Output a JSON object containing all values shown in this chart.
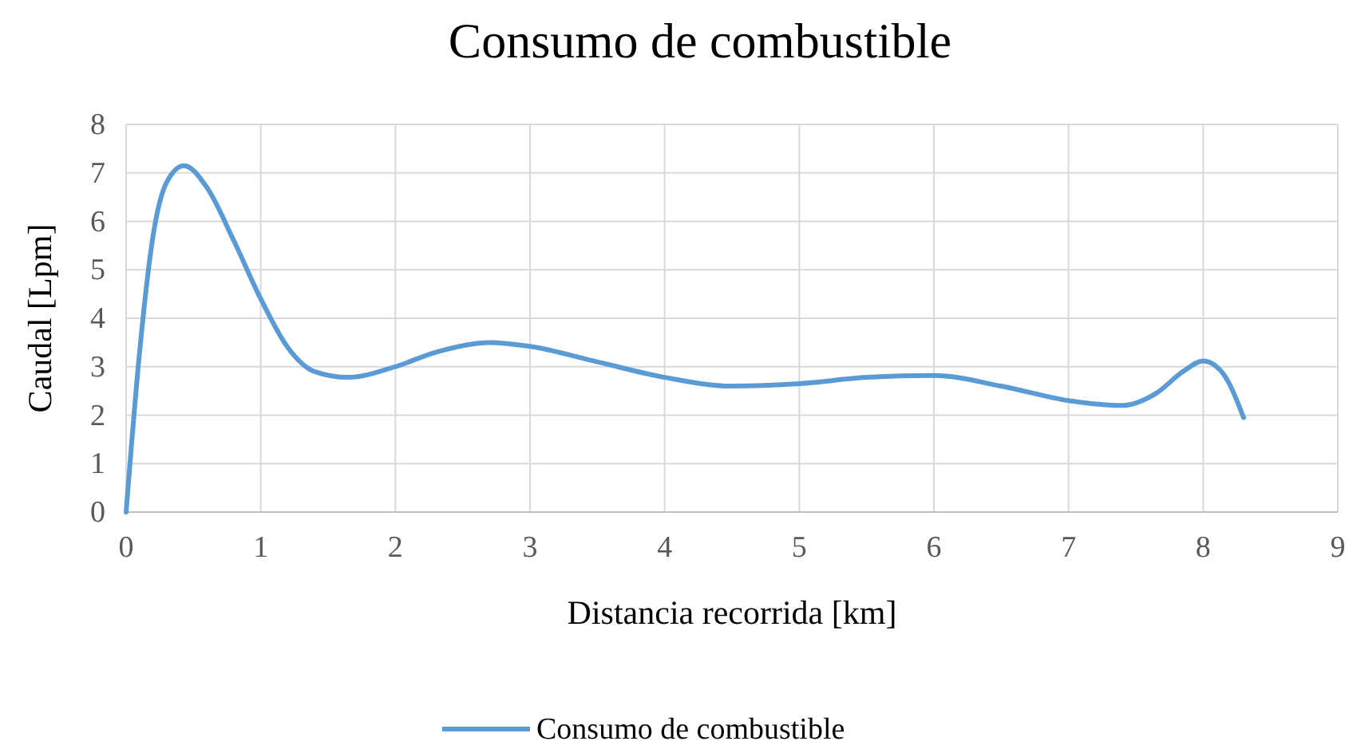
{
  "chart_data": {
    "type": "line",
    "title": "Consumo de combustible",
    "xlabel": "Distancia recorrida [km]",
    "ylabel": "Caudal [Lpm]",
    "x": [
      0,
      0.1,
      0.2,
      0.3,
      0.43,
      0.6,
      0.8,
      1.0,
      1.2,
      1.4,
      1.65,
      2.0,
      2.3,
      2.7,
      3.0,
      3.5,
      4.0,
      4.5,
      5.0,
      5.5,
      6.0,
      6.5,
      7.0,
      7.4,
      7.65,
      7.85,
      8.0,
      8.15,
      8.3
    ],
    "series": [
      {
        "name": "Consumo de combustible",
        "color": "#5b9bd5",
        "values": [
          0,
          3.3,
          5.7,
          6.8,
          7.15,
          6.7,
          5.6,
          4.4,
          3.4,
          2.9,
          2.78,
          3.0,
          3.3,
          3.5,
          3.42,
          3.1,
          2.78,
          2.6,
          2.65,
          2.78,
          2.82,
          2.6,
          2.3,
          2.2,
          2.45,
          2.9,
          3.12,
          2.85,
          1.95
        ]
      }
    ],
    "xlim": [
      0,
      9
    ],
    "xticks": [
      0,
      1,
      2,
      3,
      4,
      5,
      6,
      7,
      8,
      9
    ],
    "ylim": [
      0,
      8
    ],
    "yticks": [
      0,
      1,
      2,
      3,
      4,
      5,
      6,
      7,
      8
    ],
    "grid": true,
    "legend": "bottom",
    "marker": "none",
    "line_style": "solid"
  }
}
